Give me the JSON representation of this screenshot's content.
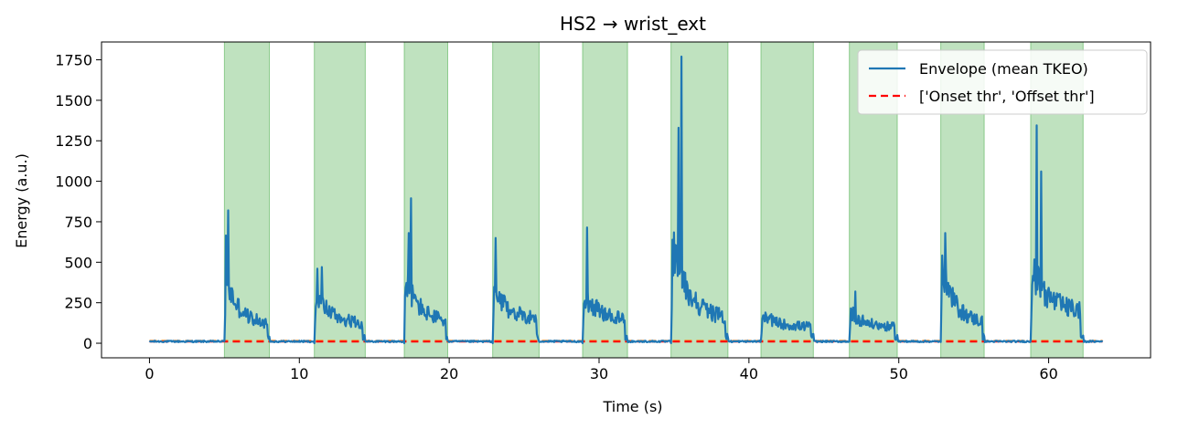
{
  "chart_data": {
    "type": "line",
    "title": "HS2 → wrist_ext",
    "xlabel": "Time (s)",
    "ylabel": "Energy (a.u.)",
    "xlim": [
      -3.2,
      66.8
    ],
    "ylim": [
      -90,
      1860
    ],
    "xticks": [
      0,
      10,
      20,
      30,
      40,
      50,
      60
    ],
    "yticks": [
      0,
      250,
      500,
      750,
      1000,
      1250,
      1500,
      1750
    ],
    "grid": false,
    "legend_position": "top-right",
    "colors": {
      "envelope": "#1f77b4",
      "offset_threshold": "#ff0000",
      "onset_threshold": "#ff7f0e",
      "span_fill": "#2ca02c"
    },
    "active_segments": [
      [
        5.0,
        8.0
      ],
      [
        11.0,
        14.4
      ],
      [
        17.0,
        19.9
      ],
      [
        22.9,
        26.0
      ],
      [
        28.9,
        31.9
      ],
      [
        34.8,
        38.6
      ],
      [
        40.8,
        44.3
      ],
      [
        46.7,
        49.9
      ],
      [
        52.8,
        55.7
      ],
      [
        58.8,
        62.3
      ]
    ],
    "thresholds": {
      "onset": 15,
      "offset": 10,
      "x_range": [
        0,
        63.6
      ]
    },
    "bursts": [
      {
        "start": 5.0,
        "end": 8.0,
        "peaks": [
          [
            5.25,
            820
          ],
          [
            5.1,
            665
          ]
        ],
        "decay_from": 420,
        "decay_to": 110
      },
      {
        "start": 11.0,
        "end": 14.4,
        "peaks": [
          [
            11.2,
            460
          ],
          [
            11.5,
            470
          ]
        ],
        "decay_from": 330,
        "decay_to": 115
      },
      {
        "start": 17.0,
        "end": 19.9,
        "peaks": [
          [
            17.45,
            895
          ],
          [
            17.3,
            680
          ]
        ],
        "decay_from": 430,
        "decay_to": 130
      },
      {
        "start": 22.9,
        "end": 26.0,
        "peaks": [
          [
            23.1,
            650
          ]
        ],
        "decay_from": 330,
        "decay_to": 150
      },
      {
        "start": 28.9,
        "end": 31.9,
        "peaks": [
          [
            29.2,
            715
          ]
        ],
        "decay_from": 330,
        "decay_to": 140
      },
      {
        "start": 34.8,
        "end": 38.6,
        "peaks": [
          [
            35.5,
            1770
          ],
          [
            35.3,
            1330
          ]
        ],
        "decay_from": 620,
        "decay_to": 140
      },
      {
        "start": 40.8,
        "end": 44.3,
        "peaks": [
          [
            41.5,
            180
          ]
        ],
        "decay_from": 170,
        "decay_to": 100
      },
      {
        "start": 46.7,
        "end": 49.9,
        "peaks": [
          [
            47.1,
            320
          ]
        ],
        "decay_from": 200,
        "decay_to": 95
      },
      {
        "start": 52.8,
        "end": 55.7,
        "peaks": [
          [
            53.1,
            680
          ]
        ],
        "decay_from": 480,
        "decay_to": 120
      },
      {
        "start": 58.8,
        "end": 62.3,
        "peaks": [
          [
            59.2,
            1345
          ],
          [
            59.5,
            1060
          ]
        ],
        "decay_from": 480,
        "decay_to": 190
      }
    ],
    "legend": [
      {
        "label": "Envelope (mean TKEO)",
        "style": "solid",
        "color": "#1f77b4"
      },
      {
        "label": "['Onset thr', 'Offset thr']",
        "style": "dashed",
        "color": "#ff0000"
      }
    ]
  }
}
